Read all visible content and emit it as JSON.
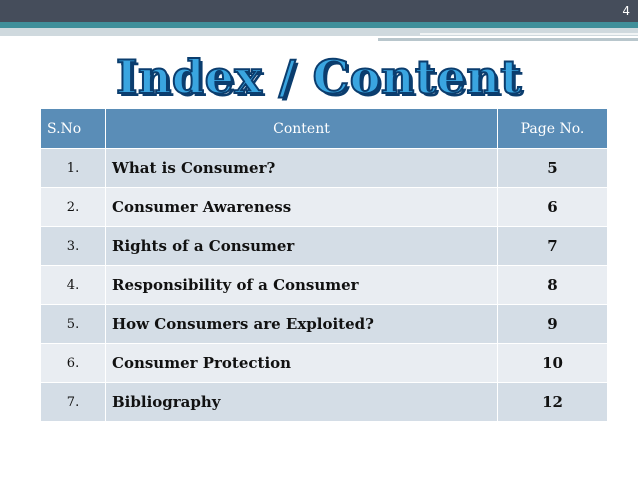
{
  "slide": {
    "page_number": "4",
    "title": "Index / Content"
  },
  "table": {
    "headers": [
      "S.No",
      "Content",
      "Page No."
    ],
    "rows": [
      {
        "sno": "1.",
        "content": "What is Consumer?",
        "page": "5"
      },
      {
        "sno": "2.",
        "content": "Consumer Awareness",
        "page": "6"
      },
      {
        "sno": "3.",
        "content": "Rights of a Consumer",
        "page": "7"
      },
      {
        "sno": "4.",
        "content": "Responsibility of a Consumer",
        "page": "8"
      },
      {
        "sno": "5.",
        "content": "How Consumers are Exploited?",
        "page": "9"
      },
      {
        "sno": "6.",
        "content": "Consumer Protection",
        "page": "10"
      },
      {
        "sno": "7.",
        "content": "Bibliography",
        "page": "12"
      }
    ]
  },
  "colors": {
    "header_bg": "#5a8db7",
    "row_dark": "#d4dde6",
    "row_light": "#e9edf2",
    "title_fill": "#3aa5e0",
    "title_outline": "#0b3d6e",
    "band_dark": "#454d5b",
    "band_teal": "#3f8f9a"
  }
}
